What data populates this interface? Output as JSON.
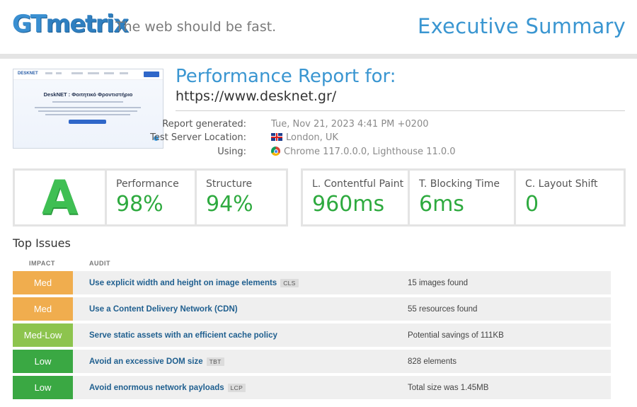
{
  "header": {
    "logo_gt": "GT",
    "logo_metrix": "metrix",
    "tagline": "The web should be fast.",
    "page_title": "Executive Summary"
  },
  "thumbnail": {
    "site_logo": "DESKNET",
    "hero_title": "DeskNET : Φοιτητικό Φροντιστήριο"
  },
  "report": {
    "title": "Performance Report for:",
    "url": "https://www.desknet.gr/",
    "meta": [
      {
        "label": "Report generated:",
        "value": "Tue, Nov 21, 2023 4:41 PM +0200",
        "icon": ""
      },
      {
        "label": "Test Server Location:",
        "value": "London, UK",
        "icon": "uk-flag-icon"
      },
      {
        "label": "Using:",
        "value": "Chrome 117.0.0.0, Lighthouse 11.0.0",
        "icon": "chrome-icon"
      }
    ]
  },
  "scores": {
    "grade": "A",
    "grade_color": "#3fbf53",
    "performance": {
      "label": "Performance",
      "value": "98%"
    },
    "structure": {
      "label": "Structure",
      "value": "94%"
    }
  },
  "web_vitals": {
    "lcp": {
      "label": "L. Contentful Paint",
      "value": "960ms"
    },
    "tbt": {
      "label": "T. Blocking Time",
      "value": "6ms"
    },
    "cls": {
      "label": "C. Layout Shift",
      "value": "0"
    }
  },
  "top_issues": {
    "title": "Top Issues",
    "col_impact": "IMPACT",
    "col_audit": "AUDIT",
    "rows": [
      {
        "impact": "Med",
        "impact_color": "#f0ad4e",
        "audit": "Use explicit width and height on image elements",
        "tag": "CLS",
        "detail": "15 images found"
      },
      {
        "impact": "Med",
        "impact_color": "#f0ad4e",
        "audit": "Use a Content Delivery Network (CDN)",
        "tag": "",
        "detail": "55 resources found"
      },
      {
        "impact": "Med-Low",
        "impact_color": "#8dc44e",
        "audit": "Serve static assets with an efficient cache policy",
        "tag": "",
        "detail": "Potential savings of 111KB"
      },
      {
        "impact": "Low",
        "impact_color": "#3aa843",
        "audit": "Avoid an excessive DOM size",
        "tag": "TBT",
        "detail": "828 elements"
      },
      {
        "impact": "Low",
        "impact_color": "#3aa843",
        "audit": "Avoid enormous network payloads",
        "tag": "LCP",
        "detail": "Total size was 1.45MB"
      }
    ]
  }
}
